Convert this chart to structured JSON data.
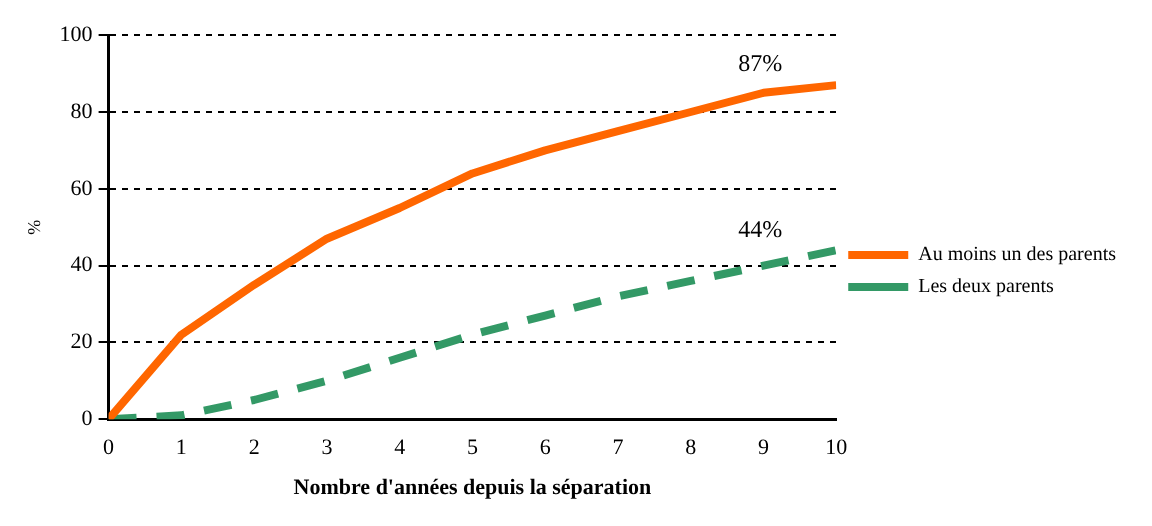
{
  "chart_data": {
    "type": "line",
    "xlabel": "Nombre d'années depuis la séparation",
    "ylabel": "%",
    "x": [
      0,
      1,
      2,
      3,
      4,
      5,
      6,
      7,
      8,
      9,
      10
    ],
    "series": [
      {
        "name": "Au moins un des parents",
        "color": "#ff6600",
        "line_style": "solid",
        "values": [
          0,
          22,
          35,
          47,
          55,
          64,
          70,
          75,
          80,
          85,
          87
        ]
      },
      {
        "name": "Les deux parents",
        "color": "#339966",
        "line_style": "dashed",
        "values": [
          0,
          1,
          5,
          10,
          16,
          22,
          27,
          32,
          36,
          40,
          44
        ]
      }
    ],
    "xlim": [
      0,
      10
    ],
    "xticks": [
      0,
      1,
      2,
      3,
      4,
      5,
      6,
      7,
      8,
      9,
      10
    ],
    "ylim": [
      0,
      100
    ],
    "yticks": [
      0,
      20,
      40,
      60,
      80,
      100
    ],
    "grid": "y",
    "legend": "right",
    "marker": "none",
    "annotations": [
      {
        "text": "87%",
        "x": 10,
        "y": 87
      },
      {
        "text": "44%",
        "x": 10,
        "y": 44
      }
    ]
  }
}
